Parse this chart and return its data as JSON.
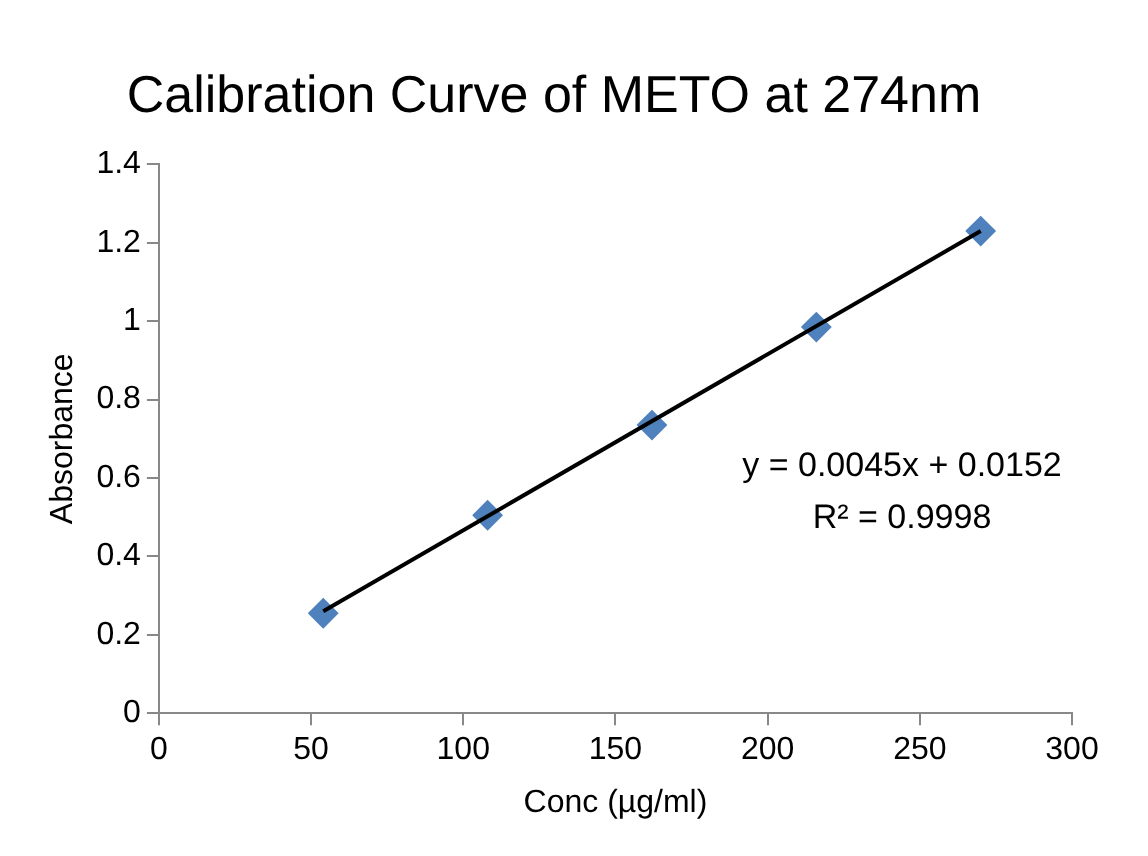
{
  "chart_data": {
    "type": "scatter",
    "title": "Calibration Curve of METO at 274nm",
    "xlabel": "Conc (µg/ml)",
    "ylabel": "Absorbance",
    "x": [
      54,
      108,
      162,
      216,
      270
    ],
    "series": [
      {
        "type": "scatter",
        "color": "#4f81bd",
        "values": [
          0.255,
          0.505,
          0.735,
          0.985,
          1.23
        ],
        "marker": "diamond"
      },
      {
        "type": "line",
        "color": "#000000",
        "x": [
          54,
          270
        ],
        "values": [
          0.26,
          1.23
        ],
        "marker": "none"
      }
    ],
    "xlim": [
      0,
      300
    ],
    "xticks": [
      0,
      50,
      100,
      150,
      200,
      250,
      300
    ],
    "ylim": [
      0,
      1.4
    ],
    "yticks": [
      0,
      0.2,
      0.4,
      0.6,
      0.8,
      1,
      1.2,
      1.4
    ],
    "grid": false,
    "legend": false,
    "annotations": [
      "y = 0.0045x + 0.0152",
      "R² = 0.9998"
    ]
  }
}
